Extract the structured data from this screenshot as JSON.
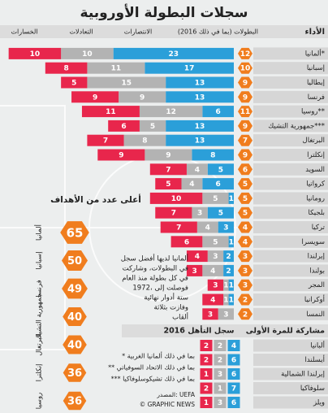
{
  "title": "سجلات البطولة الأوروبية",
  "chart_data": [
    {
      "type": "stacked-hbar",
      "header": "الأداء",
      "categories": [
        "ألمانيا*",
        "إسبانيا",
        "إيطاليا",
        "فرنسا",
        "روسيا**",
        "جمهورية التشيك***",
        "البرتغال",
        "إنكلترا",
        "السويد",
        "كرواتيا",
        "رومانيا",
        "بلجيكا",
        "تركيا",
        "سويسرا",
        "إيرلندا",
        "بولندا",
        "المجر",
        "أوكرانيا",
        "النمسا"
      ],
      "tournaments": {
        "name": "البطولات (بما في ذلك 2016)",
        "color": "#f07d1e",
        "values": [
          12,
          10,
          9,
          9,
          11,
          9,
          7,
          9,
          6,
          5,
          5,
          5,
          4,
          4,
          3,
          3,
          3,
          2,
          2
        ]
      },
      "series": [
        {
          "name": "الانتصارات",
          "color": "#2b9fd9",
          "values": [
            23,
            17,
            13,
            13,
            6,
            13,
            13,
            8,
            5,
            6,
            1,
            5,
            3,
            1,
            2,
            2,
            1,
            1,
            0
          ]
        },
        {
          "name": "التعادلات",
          "color": "#b3b3b3",
          "values": [
            10,
            11,
            15,
            9,
            12,
            5,
            8,
            9,
            4,
            4,
            5,
            3,
            4,
            5,
            3,
            4,
            1,
            1,
            3
          ]
        },
        {
          "name": "الخسارات",
          "color": "#e8264c",
          "values": [
            10,
            8,
            5,
            9,
            11,
            6,
            7,
            9,
            7,
            5,
            10,
            7,
            7,
            6,
            4,
            3,
            3,
            4,
            3
          ]
        }
      ]
    },
    {
      "type": "hex",
      "title": "أعلى عدد من الأهداف",
      "color": "#f07d1e",
      "categories": [
        "ألمانيا",
        "إسبانيا",
        "فرنسا",
        "جمهورية التشيك",
        "البرتغال",
        "إنكلترا",
        "روسيا"
      ],
      "values": [
        65,
        50,
        49,
        40,
        40,
        36,
        36
      ]
    }
  ],
  "note": [
    "ألمانيا لديها أفضل سجل",
    "في البطولات، وشاركت",
    "في كل بطولة منذ العام",
    "1972، فوصلت إلى",
    "ستة أدوار نهائية",
    "وفازت بثلاثة",
    "ألقاب"
  ],
  "first_time": {
    "title": "مشاركة للمرة الأولى",
    "subtitle": "سجل التأهل 2016",
    "rows": [
      {
        "country": "ألبانيا",
        "values": [
          4,
          2,
          2
        ]
      },
      {
        "country": "أيسلندا",
        "values": [
          6,
          2,
          2
        ]
      },
      {
        "country": "إيرلندا الشمالية",
        "values": [
          6,
          3,
          1
        ]
      },
      {
        "country": "سلوفاكيا",
        "values": [
          7,
          1,
          2
        ]
      },
      {
        "country": "ويلز",
        "values": [
          6,
          3,
          1
        ]
      }
    ]
  },
  "footnotes": [
    "* بما في ذلك ألمانيا الغربية",
    "** بما في ذلك الاتحاد السوفياتي",
    "*** بما في ذلك تشيكوسلوفاكيا"
  ],
  "source": "المصدر: UEFA",
  "credit": "© GRAPHIC NEWS"
}
